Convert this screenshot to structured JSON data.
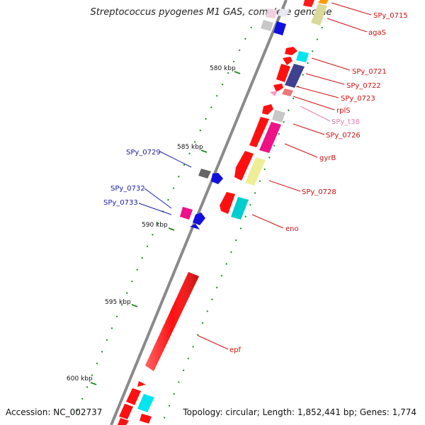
{
  "title": "Streptococcus pyogenes M1 GAS, complete genome",
  "accession": "Accession: NC_002737",
  "topology": "Topology: circular; Length: 1,852,441 bp; Genes: 1,774",
  "colors": {
    "backbone": "#808080",
    "tick": "#228b22",
    "label_red": "#d01010",
    "label_blue": "#1a1aa8",
    "label_pink": "#e080b0"
  },
  "kbp_ticks": [
    {
      "label": "580 kbp",
      "kbp": 580
    },
    {
      "label": "585 kbp",
      "kbp": 585
    },
    {
      "label": "590 kbp",
      "kbp": 590
    },
    {
      "label": "595 kbp",
      "kbp": 595
    },
    {
      "label": "600 kbp",
      "kbp": 600
    }
  ],
  "gene_labels": [
    {
      "text": "SPy_0715",
      "color": "red"
    },
    {
      "text": "agaS",
      "color": "red"
    },
    {
      "text": "SPy_0721",
      "color": "red"
    },
    {
      "text": "SPy_0722",
      "color": "red"
    },
    {
      "text": "SPy_0723",
      "color": "red"
    },
    {
      "text": "rplS",
      "color": "red"
    },
    {
      "text": "SPy_t38",
      "color": "pink"
    },
    {
      "text": "SPy_0726",
      "color": "red"
    },
    {
      "text": "gyrB",
      "color": "red"
    },
    {
      "text": "SPy_0728",
      "color": "red"
    },
    {
      "text": "eno",
      "color": "red"
    },
    {
      "text": "epf",
      "color": "red"
    },
    {
      "text": "SPy_0729",
      "color": "blue"
    },
    {
      "text": "SPy_0732",
      "color": "blue"
    },
    {
      "text": "SPy_0733",
      "color": "blue"
    }
  ]
}
